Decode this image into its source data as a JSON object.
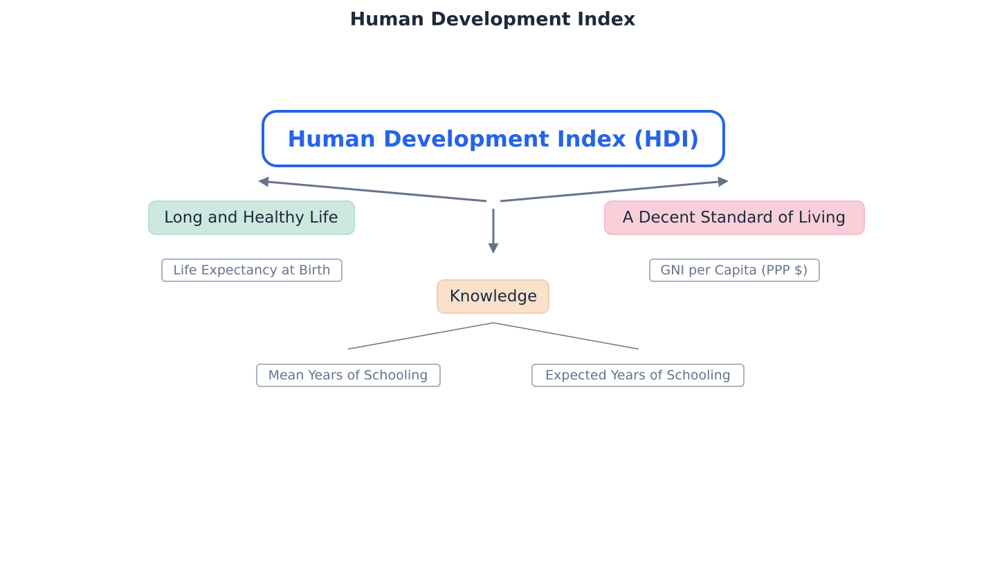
{
  "title": "Human Development Index",
  "nodes": [
    {
      "label": "Human Development Index (HDI)"
    },
    {
      "label": "Long and Healthy Life"
    },
    {
      "label": "A Decent Standard of Living"
    },
    {
      "label": "Knowledge"
    },
    {
      "label": "Life Expectancy at Birth"
    },
    {
      "label": "GNI per Capita (PPP $)"
    },
    {
      "label": "Mean Years of Schooling"
    },
    {
      "label": "Expected Years of Schooling"
    }
  ]
}
